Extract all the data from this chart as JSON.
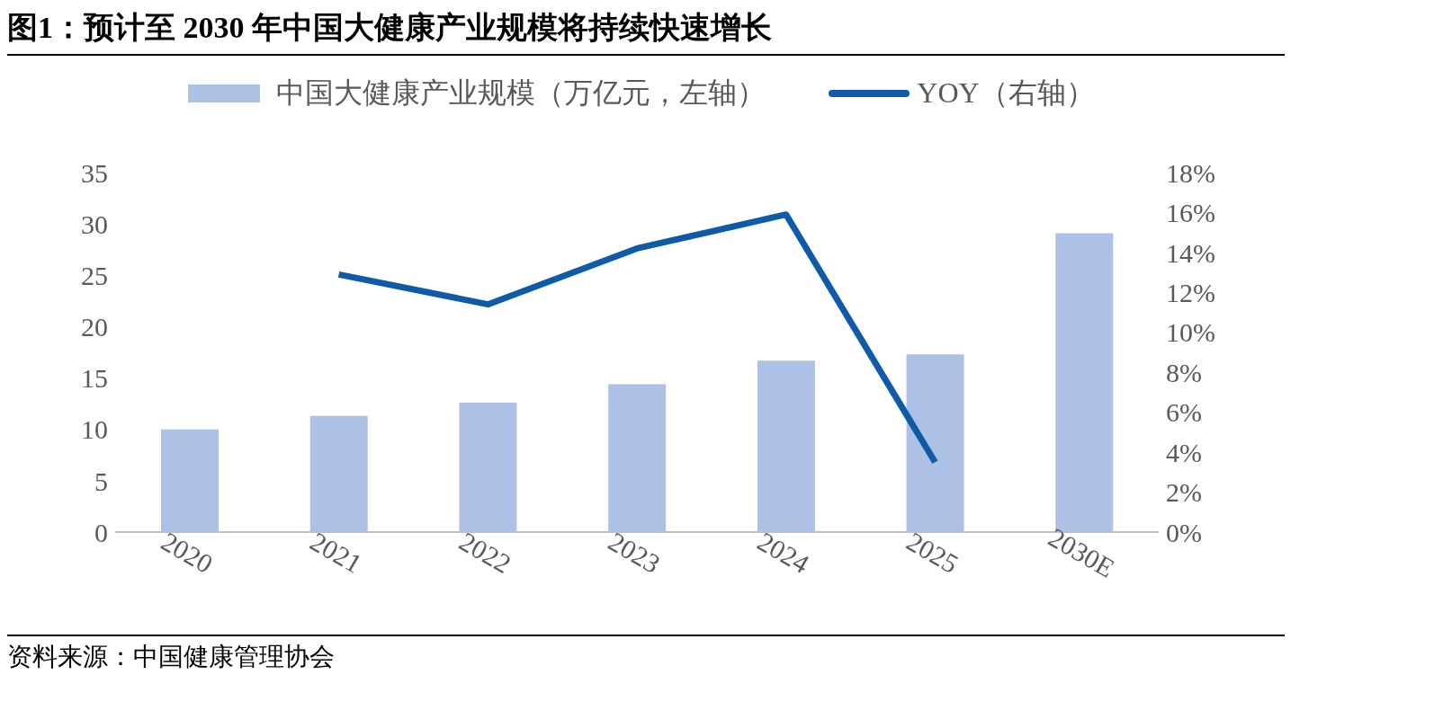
{
  "chart_data": {
    "type": "bar",
    "title": "图1：预计至 2030 年中国大健康产业规模将持续快速增长",
    "categories": [
      "2020",
      "2021",
      "2022",
      "2023",
      "2024",
      "2025",
      "2030E"
    ],
    "series": [
      {
        "name": "中国大健康产业规模（万亿元，左轴）",
        "color": "#adc1e7",
        "values": [
          10.0,
          11.3,
          12.6,
          14.4,
          16.7,
          17.3,
          29.1
        ]
      },
      {
        "name": "YOY（右轴）",
        "type": "line",
        "axis": "y2",
        "color": "#0f5ba7",
        "values": [
          null,
          12.9,
          11.4,
          14.2,
          15.9,
          3.5,
          null
        ]
      }
    ],
    "ylim": [
      0,
      35
    ],
    "yticks": [
      0,
      5,
      10,
      15,
      20,
      25,
      30,
      35
    ],
    "y2lim": [
      0,
      18
    ],
    "y2ticks": [
      {
        "value": 0,
        "label": "0%"
      },
      {
        "value": 2,
        "label": "2%"
      },
      {
        "value": 4,
        "label": "4%"
      },
      {
        "value": 6,
        "label": "6%"
      },
      {
        "value": 8,
        "label": "8%"
      },
      {
        "value": 10,
        "label": "10%"
      },
      {
        "value": 12,
        "label": "12%"
      },
      {
        "value": 14,
        "label": "14%"
      },
      {
        "value": 16,
        "label": "16%"
      },
      {
        "value": 18,
        "label": "18%"
      }
    ],
    "grid": false,
    "legend": "top",
    "marker": "none",
    "line_style": "solid",
    "annotations": [
      "资料来源：中国健康管理协会"
    ]
  }
}
